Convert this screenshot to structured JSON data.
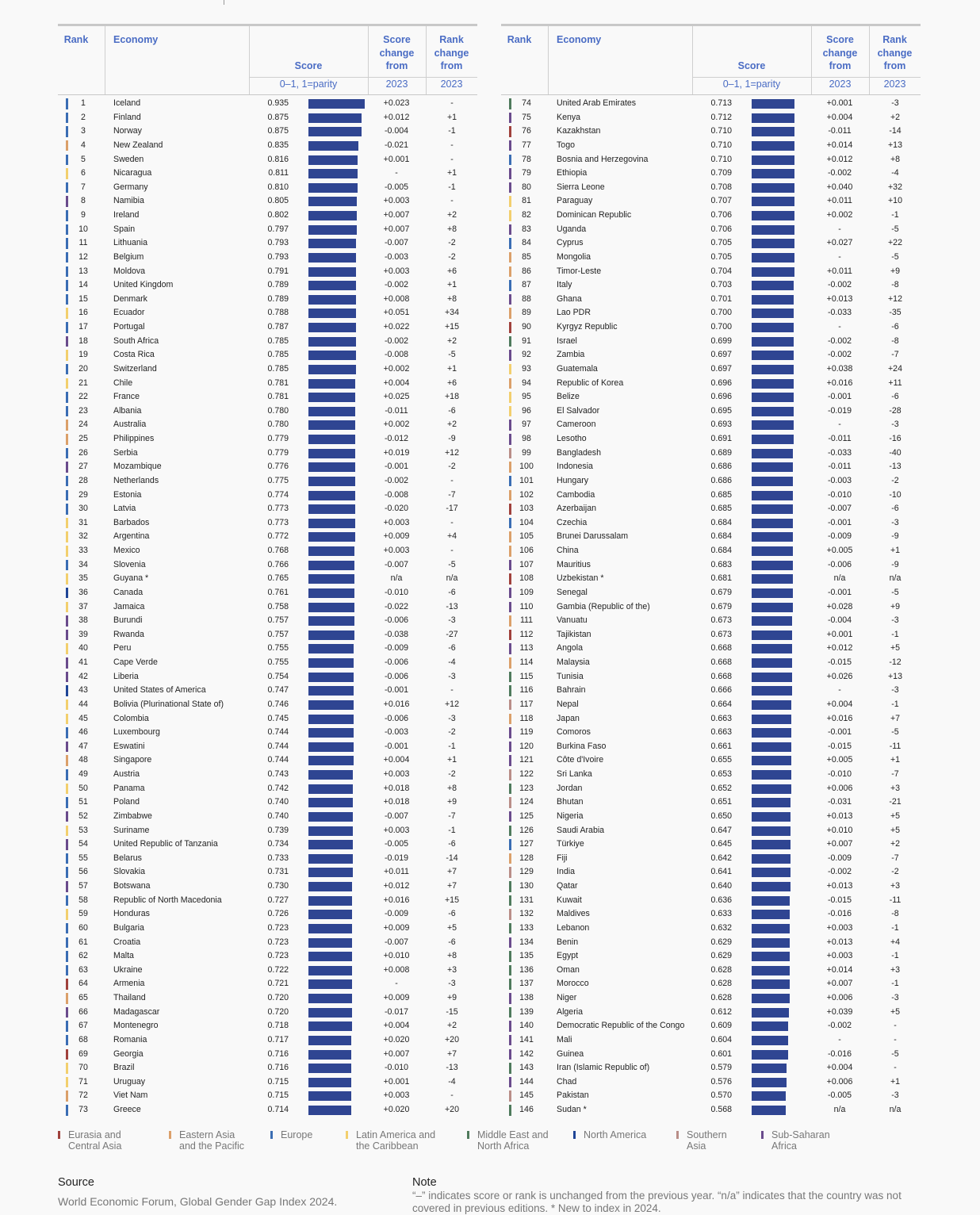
{
  "header": {
    "rank": "Rank",
    "economy": "Economy",
    "score": "Score",
    "score_sub": "0–1, 1=parity",
    "score_change": "Score change from",
    "score_change_sub": "2023",
    "rank_change": "Rank change from",
    "rank_change_sub": "2023"
  },
  "colors": {
    "bar": "#2f4592",
    "header_text": "#4a6cc4",
    "regions": {
      "EAC": "#a0413c",
      "EAP": "#dba06a",
      "EUR": "#3a6db3",
      "LAC": "#f2cf6e",
      "MENA": "#4f7a5c",
      "NA": "#1f4596",
      "SA": "#b98e88",
      "SSA": "#6a4b8c"
    }
  },
  "legend": [
    {
      "region": "EAC",
      "label": "Eurasia and Central Asia"
    },
    {
      "region": "EAP",
      "label": "Eastern Asia and the Pacific"
    },
    {
      "region": "EUR",
      "label": "Europe"
    },
    {
      "region": "LAC",
      "label": "Latin America and the Caribbean"
    },
    {
      "region": "MENA",
      "label": "Middle East and North Africa"
    },
    {
      "region": "NA",
      "label": "North America"
    },
    {
      "region": "SA",
      "label": "Southern Asia"
    },
    {
      "region": "SSA",
      "label": "Sub-Saharan Africa"
    }
  ],
  "row_fields": [
    "rank",
    "economy",
    "score",
    "score_change",
    "rank_change",
    "region"
  ],
  "left_rows": [
    [
      "1",
      "Iceland",
      "0.935",
      "+0.023",
      "-",
      "EUR"
    ],
    [
      "2",
      "Finland",
      "0.875",
      "+0.012",
      "+1",
      "EUR"
    ],
    [
      "3",
      "Norway",
      "0.875",
      "-0.004",
      "-1",
      "EUR"
    ],
    [
      "4",
      "New Zealand",
      "0.835",
      "-0.021",
      "-",
      "EAP"
    ],
    [
      "5",
      "Sweden",
      "0.816",
      "+0.001",
      "-",
      "EUR"
    ],
    [
      "6",
      "Nicaragua",
      "0.811",
      "-",
      "+1",
      "LAC"
    ],
    [
      "7",
      "Germany",
      "0.810",
      "-0.005",
      "-1",
      "EUR"
    ],
    [
      "8",
      "Namibia",
      "0.805",
      "+0.003",
      "-",
      "SSA"
    ],
    [
      "9",
      "Ireland",
      "0.802",
      "+0.007",
      "+2",
      "EUR"
    ],
    [
      "10",
      "Spain",
      "0.797",
      "+0.007",
      "+8",
      "EUR"
    ],
    [
      "11",
      "Lithuania",
      "0.793",
      "-0.007",
      "-2",
      "EUR"
    ],
    [
      "12",
      "Belgium",
      "0.793",
      "-0.003",
      "-2",
      "EUR"
    ],
    [
      "13",
      "Moldova",
      "0.791",
      "+0.003",
      "+6",
      "EUR"
    ],
    [
      "14",
      "United Kingdom",
      "0.789",
      "-0.002",
      "+1",
      "EUR"
    ],
    [
      "15",
      "Denmark",
      "0.789",
      "+0.008",
      "+8",
      "EUR"
    ],
    [
      "16",
      "Ecuador",
      "0.788",
      "+0.051",
      "+34",
      "LAC"
    ],
    [
      "17",
      "Portugal",
      "0.787",
      "+0.022",
      "+15",
      "EUR"
    ],
    [
      "18",
      "South Africa",
      "0.785",
      "-0.002",
      "+2",
      "SSA"
    ],
    [
      "19",
      "Costa Rica",
      "0.785",
      "-0.008",
      "-5",
      "LAC"
    ],
    [
      "20",
      "Switzerland",
      "0.785",
      "+0.002",
      "+1",
      "EUR"
    ],
    [
      "21",
      "Chile",
      "0.781",
      "+0.004",
      "+6",
      "LAC"
    ],
    [
      "22",
      "France",
      "0.781",
      "+0.025",
      "+18",
      "EUR"
    ],
    [
      "23",
      "Albania",
      "0.780",
      "-0.011",
      "-6",
      "EUR"
    ],
    [
      "24",
      "Australia",
      "0.780",
      "+0.002",
      "+2",
      "EAP"
    ],
    [
      "25",
      "Philippines",
      "0.779",
      "-0.012",
      "-9",
      "EAP"
    ],
    [
      "26",
      "Serbia",
      "0.779",
      "+0.019",
      "+12",
      "EUR"
    ],
    [
      "27",
      "Mozambique",
      "0.776",
      "-0.001",
      "-2",
      "SSA"
    ],
    [
      "28",
      "Netherlands",
      "0.775",
      "-0.002",
      "-",
      "EUR"
    ],
    [
      "29",
      "Estonia",
      "0.774",
      "-0.008",
      "-7",
      "EUR"
    ],
    [
      "30",
      "Latvia",
      "0.773",
      "-0.020",
      "-17",
      "EUR"
    ],
    [
      "31",
      "Barbados",
      "0.773",
      "+0.003",
      "-",
      "LAC"
    ],
    [
      "32",
      "Argentina",
      "0.772",
      "+0.009",
      "+4",
      "LAC"
    ],
    [
      "33",
      "Mexico",
      "0.768",
      "+0.003",
      "-",
      "LAC"
    ],
    [
      "34",
      "Slovenia",
      "0.766",
      "-0.007",
      "-5",
      "EUR"
    ],
    [
      "35",
      "Guyana *",
      "0.765",
      "n/a",
      "n/a",
      "LAC"
    ],
    [
      "36",
      "Canada",
      "0.761",
      "-0.010",
      "-6",
      "NA"
    ],
    [
      "37",
      "Jamaica",
      "0.758",
      "-0.022",
      "-13",
      "LAC"
    ],
    [
      "38",
      "Burundi",
      "0.757",
      "-0.006",
      "-3",
      "SSA"
    ],
    [
      "39",
      "Rwanda",
      "0.757",
      "-0.038",
      "-27",
      "SSA"
    ],
    [
      "40",
      "Peru",
      "0.755",
      "-0.009",
      "-6",
      "LAC"
    ],
    [
      "41",
      "Cape Verde",
      "0.755",
      "-0.006",
      "-4",
      "SSA"
    ],
    [
      "42",
      "Liberia",
      "0.754",
      "-0.006",
      "-3",
      "SSA"
    ],
    [
      "43",
      "United States of America",
      "0.747",
      "-0.001",
      "-",
      "NA"
    ],
    [
      "44",
      "Bolivia (Plurinational State of)",
      "0.746",
      "+0.016",
      "+12",
      "LAC"
    ],
    [
      "45",
      "Colombia",
      "0.745",
      "-0.006",
      "-3",
      "LAC"
    ],
    [
      "46",
      "Luxembourg",
      "0.744",
      "-0.003",
      "-2",
      "EUR"
    ],
    [
      "47",
      "Eswatini",
      "0.744",
      "-0.001",
      "-1",
      "SSA"
    ],
    [
      "48",
      "Singapore",
      "0.744",
      "+0.004",
      "+1",
      "EAP"
    ],
    [
      "49",
      "Austria",
      "0.743",
      "+0.003",
      "-2",
      "EUR"
    ],
    [
      "50",
      "Panama",
      "0.742",
      "+0.018",
      "+8",
      "LAC"
    ],
    [
      "51",
      "Poland",
      "0.740",
      "+0.018",
      "+9",
      "EUR"
    ],
    [
      "52",
      "Zimbabwe",
      "0.740",
      "-0.007",
      "-7",
      "SSA"
    ],
    [
      "53",
      "Suriname",
      "0.739",
      "+0.003",
      "-1",
      "LAC"
    ],
    [
      "54",
      "United Republic of Tanzania",
      "0.734",
      "-0.005",
      "-6",
      "SSA"
    ],
    [
      "55",
      "Belarus",
      "0.733",
      "-0.019",
      "-14",
      "EUR"
    ],
    [
      "56",
      "Slovakia",
      "0.731",
      "+0.011",
      "+7",
      "EUR"
    ],
    [
      "57",
      "Botswana",
      "0.730",
      "+0.012",
      "+7",
      "SSA"
    ],
    [
      "58",
      "Republic of North Macedonia",
      "0.727",
      "+0.016",
      "+15",
      "EUR"
    ],
    [
      "59",
      "Honduras",
      "0.726",
      "-0.009",
      "-6",
      "LAC"
    ],
    [
      "60",
      "Bulgaria",
      "0.723",
      "+0.009",
      "+5",
      "EUR"
    ],
    [
      "61",
      "Croatia",
      "0.723",
      "-0.007",
      "-6",
      "EUR"
    ],
    [
      "62",
      "Malta",
      "0.723",
      "+0.010",
      "+8",
      "EUR"
    ],
    [
      "63",
      "Ukraine",
      "0.722",
      "+0.008",
      "+3",
      "EUR"
    ],
    [
      "64",
      "Armenia",
      "0.721",
      "-",
      "-3",
      "EAC"
    ],
    [
      "65",
      "Thailand",
      "0.720",
      "+0.009",
      "+9",
      "EAP"
    ],
    [
      "66",
      "Madagascar",
      "0.720",
      "-0.017",
      "-15",
      "SSA"
    ],
    [
      "67",
      "Montenegro",
      "0.718",
      "+0.004",
      "+2",
      "EUR"
    ],
    [
      "68",
      "Romania",
      "0.717",
      "+0.020",
      "+20",
      "EUR"
    ],
    [
      "69",
      "Georgia",
      "0.716",
      "+0.007",
      "+7",
      "EAC"
    ],
    [
      "70",
      "Brazil",
      "0.716",
      "-0.010",
      "-13",
      "LAC"
    ],
    [
      "71",
      "Uruguay",
      "0.715",
      "+0.001",
      "-4",
      "LAC"
    ],
    [
      "72",
      "Viet Nam",
      "0.715",
      "+0.003",
      "-",
      "EAP"
    ],
    [
      "73",
      "Greece",
      "0.714",
      "+0.020",
      "+20",
      "EUR"
    ]
  ],
  "right_rows": [
    [
      "74",
      "United Arab Emirates",
      "0.713",
      "+0.001",
      "-3",
      "MENA"
    ],
    [
      "75",
      "Kenya",
      "0.712",
      "+0.004",
      "+2",
      "SSA"
    ],
    [
      "76",
      "Kazakhstan",
      "0.710",
      "-0.011",
      "-14",
      "EAC"
    ],
    [
      "77",
      "Togo",
      "0.710",
      "+0.014",
      "+13",
      "SSA"
    ],
    [
      "78",
      "Bosnia and Herzegovina",
      "0.710",
      "+0.012",
      "+8",
      "EUR"
    ],
    [
      "79",
      "Ethiopia",
      "0.709",
      "-0.002",
      "-4",
      "SSA"
    ],
    [
      "80",
      "Sierra Leone",
      "0.708",
      "+0.040",
      "+32",
      "SSA"
    ],
    [
      "81",
      "Paraguay",
      "0.707",
      "+0.011",
      "+10",
      "LAC"
    ],
    [
      "82",
      "Dominican Republic",
      "0.706",
      "+0.002",
      "-1",
      "LAC"
    ],
    [
      "83",
      "Uganda",
      "0.706",
      "-",
      "-5",
      "SSA"
    ],
    [
      "84",
      "Cyprus",
      "0.705",
      "+0.027",
      "+22",
      "EUR"
    ],
    [
      "85",
      "Mongolia",
      "0.705",
      "-",
      "-5",
      "EAP"
    ],
    [
      "86",
      "Timor-Leste",
      "0.704",
      "+0.011",
      "+9",
      "EAP"
    ],
    [
      "87",
      "Italy",
      "0.703",
      "-0.002",
      "-8",
      "EUR"
    ],
    [
      "88",
      "Ghana",
      "0.701",
      "+0.013",
      "+12",
      "SSA"
    ],
    [
      "89",
      "Lao PDR",
      "0.700",
      "-0.033",
      "-35",
      "EAP"
    ],
    [
      "90",
      "Kyrgyz Republic",
      "0.700",
      "-",
      "-6",
      "EAC"
    ],
    [
      "91",
      "Israel",
      "0.699",
      "-0.002",
      "-8",
      "MENA"
    ],
    [
      "92",
      "Zambia",
      "0.697",
      "-0.002",
      "-7",
      "SSA"
    ],
    [
      "93",
      "Guatemala",
      "0.697",
      "+0.038",
      "+24",
      "LAC"
    ],
    [
      "94",
      "Republic of Korea",
      "0.696",
      "+0.016",
      "+11",
      "EAP"
    ],
    [
      "95",
      "Belize",
      "0.696",
      "-0.001",
      "-6",
      "LAC"
    ],
    [
      "96",
      "El Salvador",
      "0.695",
      "-0.019",
      "-28",
      "LAC"
    ],
    [
      "97",
      "Cameroon",
      "0.693",
      "-",
      "-3",
      "SSA"
    ],
    [
      "98",
      "Lesotho",
      "0.691",
      "-0.011",
      "-16",
      "SSA"
    ],
    [
      "99",
      "Bangladesh",
      "0.689",
      "-0.033",
      "-40",
      "SA"
    ],
    [
      "100",
      "Indonesia",
      "0.686",
      "-0.011",
      "-13",
      "EAP"
    ],
    [
      "101",
      "Hungary",
      "0.686",
      "-0.003",
      "-2",
      "EUR"
    ],
    [
      "102",
      "Cambodia",
      "0.685",
      "-0.010",
      "-10",
      "EAP"
    ],
    [
      "103",
      "Azerbaijan",
      "0.685",
      "-0.007",
      "-6",
      "EAC"
    ],
    [
      "104",
      "Czechia",
      "0.684",
      "-0.001",
      "-3",
      "EUR"
    ],
    [
      "105",
      "Brunei Darussalam",
      "0.684",
      "-0.009",
      "-9",
      "EAP"
    ],
    [
      "106",
      "China",
      "0.684",
      "+0.005",
      "+1",
      "EAP"
    ],
    [
      "107",
      "Mauritius",
      "0.683",
      "-0.006",
      "-9",
      "SSA"
    ],
    [
      "108",
      "Uzbekistan *",
      "0.681",
      "n/a",
      "n/a",
      "EAC"
    ],
    [
      "109",
      "Senegal",
      "0.679",
      "-0.001",
      "-5",
      "SSA"
    ],
    [
      "110",
      "Gambia (Republic of the)",
      "0.679",
      "+0.028",
      "+9",
      "SSA"
    ],
    [
      "111",
      "Vanuatu",
      "0.673",
      "-0.004",
      "-3",
      "EAP"
    ],
    [
      "112",
      "Tajikistan",
      "0.673",
      "+0.001",
      "-1",
      "EAC"
    ],
    [
      "113",
      "Angola",
      "0.668",
      "+0.012",
      "+5",
      "SSA"
    ],
    [
      "114",
      "Malaysia",
      "0.668",
      "-0.015",
      "-12",
      "EAP"
    ],
    [
      "115",
      "Tunisia",
      "0.668",
      "+0.026",
      "+13",
      "MENA"
    ],
    [
      "116",
      "Bahrain",
      "0.666",
      "-",
      "-3",
      "MENA"
    ],
    [
      "117",
      "Nepal",
      "0.664",
      "+0.004",
      "-1",
      "SA"
    ],
    [
      "118",
      "Japan",
      "0.663",
      "+0.016",
      "+7",
      "EAP"
    ],
    [
      "119",
      "Comoros",
      "0.663",
      "-0.001",
      "-5",
      "SSA"
    ],
    [
      "120",
      "Burkina Faso",
      "0.661",
      "-0.015",
      "-11",
      "SSA"
    ],
    [
      "121",
      "Côte d'Ivoire",
      "0.655",
      "+0.005",
      "+1",
      "SSA"
    ],
    [
      "122",
      "Sri Lanka",
      "0.653",
      "-0.010",
      "-7",
      "SA"
    ],
    [
      "123",
      "Jordan",
      "0.652",
      "+0.006",
      "+3",
      "MENA"
    ],
    [
      "124",
      "Bhutan",
      "0.651",
      "-0.031",
      "-21",
      "SA"
    ],
    [
      "125",
      "Nigeria",
      "0.650",
      "+0.013",
      "+5",
      "SSA"
    ],
    [
      "126",
      "Saudi Arabia",
      "0.647",
      "+0.010",
      "+5",
      "MENA"
    ],
    [
      "127",
      "Türkiye",
      "0.645",
      "+0.007",
      "+2",
      "EUR"
    ],
    [
      "128",
      "Fiji",
      "0.642",
      "-0.009",
      "-7",
      "EAP"
    ],
    [
      "129",
      "India",
      "0.641",
      "-0.002",
      "-2",
      "SA"
    ],
    [
      "130",
      "Qatar",
      "0.640",
      "+0.013",
      "+3",
      "MENA"
    ],
    [
      "131",
      "Kuwait",
      "0.636",
      "-0.015",
      "-11",
      "MENA"
    ],
    [
      "132",
      "Maldives",
      "0.633",
      "-0.016",
      "-8",
      "SA"
    ],
    [
      "133",
      "Lebanon",
      "0.632",
      "+0.003",
      "-1",
      "MENA"
    ],
    [
      "134",
      "Benin",
      "0.629",
      "+0.013",
      "+4",
      "SSA"
    ],
    [
      "135",
      "Egypt",
      "0.629",
      "+0.003",
      "-1",
      "MENA"
    ],
    [
      "136",
      "Oman",
      "0.628",
      "+0.014",
      "+3",
      "MENA"
    ],
    [
      "137",
      "Morocco",
      "0.628",
      "+0.007",
      "-1",
      "MENA"
    ],
    [
      "138",
      "Niger",
      "0.628",
      "+0.006",
      "-3",
      "SSA"
    ],
    [
      "139",
      "Algeria",
      "0.612",
      "+0.039",
      "+5",
      "MENA"
    ],
    [
      "140",
      "Democratic Republic of the Congo",
      "0.609",
      "-0.002",
      "-",
      "SSA"
    ],
    [
      "141",
      "Mali",
      "0.604",
      "-",
      "-",
      "SSA"
    ],
    [
      "142",
      "Guinea",
      "0.601",
      "-0.016",
      "-5",
      "SSA"
    ],
    [
      "143",
      "Iran (Islamic Republic of)",
      "0.579",
      "+0.004",
      "-",
      "MENA"
    ],
    [
      "144",
      "Chad",
      "0.576",
      "+0.006",
      "+1",
      "SSA"
    ],
    [
      "145",
      "Pakistan",
      "0.570",
      "-0.005",
      "-3",
      "SA"
    ],
    [
      "146",
      "Sudan *",
      "0.568",
      "n/a",
      "n/a",
      "MENA"
    ]
  ],
  "source": {
    "title": "Source",
    "text": "World Economic Forum, Global Gender Gap Index 2024."
  },
  "note": {
    "title": "Note",
    "text": "“–” indicates score or rank is unchanged from the previous year. “n/a” indicates that the country was not covered in previous editions. * New to index in 2024."
  }
}
